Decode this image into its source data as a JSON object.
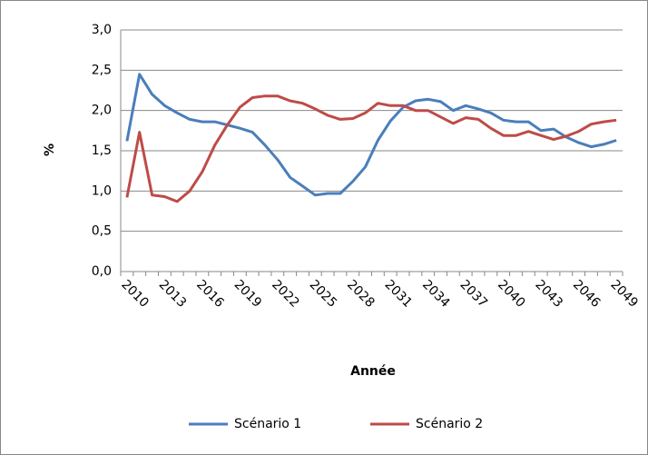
{
  "chart_data": {
    "type": "line",
    "categories": [
      "2010",
      null,
      null,
      "2013",
      null,
      null,
      "2016",
      null,
      null,
      "2019",
      null,
      null,
      "2022",
      null,
      null,
      "2025",
      null,
      null,
      "2028",
      null,
      null,
      "2031",
      null,
      null,
      "2034",
      null,
      null,
      "2037",
      null,
      null,
      "2040",
      null,
      null,
      "2043",
      null,
      null,
      "2046",
      null,
      null,
      "2049"
    ],
    "series": [
      {
        "name": "Scénario 1",
        "color": "#4a7ebb",
        "values": [
          1.62,
          2.45,
          2.2,
          2.06,
          1.97,
          1.89,
          1.86,
          1.86,
          1.82,
          1.78,
          1.73,
          1.57,
          1.39,
          1.17,
          1.06,
          0.95,
          0.97,
          0.97,
          1.12,
          1.3,
          1.63,
          1.87,
          2.04,
          2.12,
          2.14,
          2.11,
          2.0,
          2.06,
          2.02,
          1.97,
          1.88,
          1.86,
          1.86,
          1.75,
          1.77,
          1.67,
          1.6,
          1.55,
          1.58,
          1.63
        ]
      },
      {
        "name": "Scénario 2",
        "color": "#be4b48",
        "values": [
          0.92,
          1.73,
          0.95,
          0.93,
          0.87,
          1.0,
          1.24,
          1.57,
          1.82,
          2.04,
          2.16,
          2.18,
          2.18,
          2.12,
          2.09,
          2.02,
          1.94,
          1.89,
          1.9,
          1.97,
          2.09,
          2.06,
          2.06,
          2.0,
          2.0,
          1.92,
          1.84,
          1.91,
          1.89,
          1.78,
          1.69,
          1.69,
          1.74,
          1.69,
          1.64,
          1.68,
          1.74,
          1.83,
          1.86,
          1.88
        ]
      }
    ],
    "ylabel": "%",
    "xlabel": "Année",
    "ylim": [
      0,
      3
    ],
    "yticks": [
      {
        "value": 0,
        "label": "0,0"
      },
      {
        "value": 0.5,
        "label": "0,5"
      },
      {
        "value": 1,
        "label": "1,0"
      },
      {
        "value": 1.5,
        "label": "1,5"
      },
      {
        "value": 2,
        "label": "2,0"
      },
      {
        "value": 2.5,
        "label": "2,5"
      },
      {
        "value": 3,
        "label": "3,0"
      }
    ],
    "grid": true,
    "legend": "bottom"
  }
}
